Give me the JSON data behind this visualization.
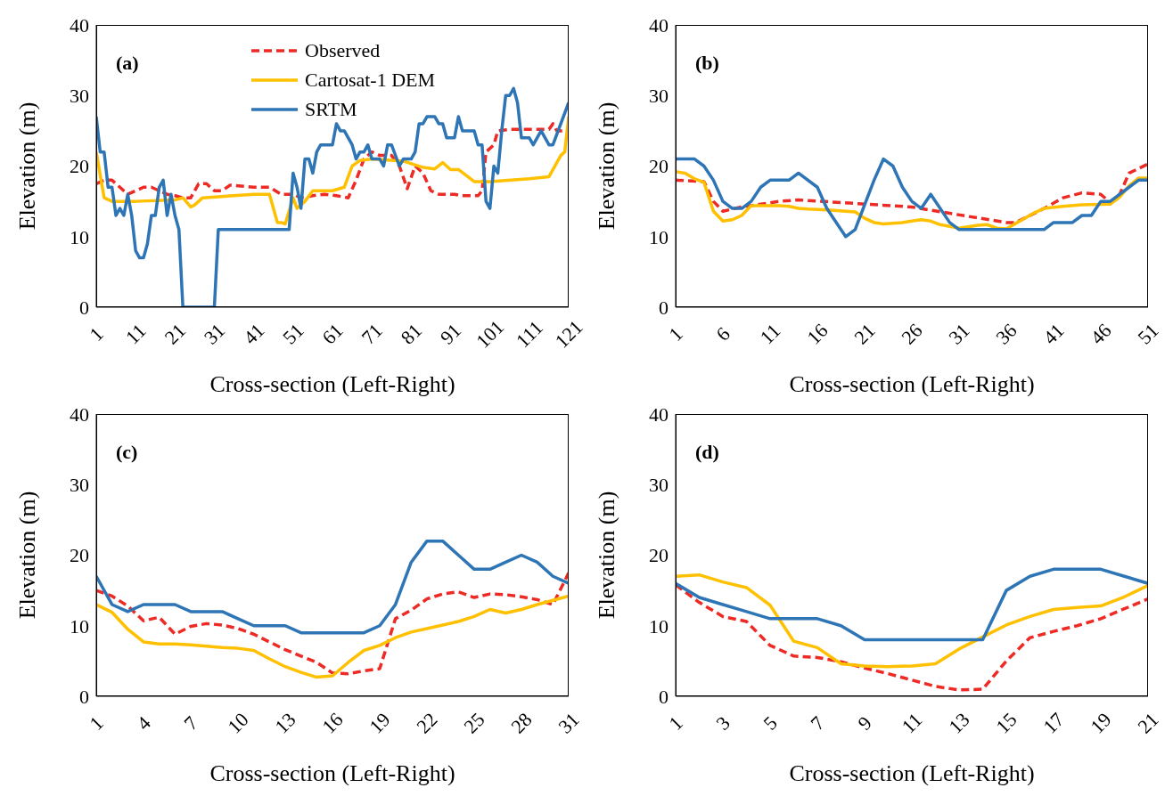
{
  "chart_data": [
    {
      "type": "line",
      "title": "(a)",
      "xlabel": "Cross-section (Left-Right)",
      "ylabel": "Elevation (m)",
      "xlim": [
        1,
        121
      ],
      "xticks": [
        1,
        11,
        21,
        31,
        41,
        51,
        61,
        71,
        81,
        91,
        101,
        111,
        121
      ],
      "ylim": [
        0,
        40
      ],
      "yticks": [
        0,
        10,
        20,
        30,
        40
      ],
      "grid": false,
      "legend": "top",
      "marker": "none",
      "series": [
        {
          "name": "Observed",
          "color": "#ee2a24",
          "line_style": "dashed",
          "x": [
            1,
            3,
            5,
            7,
            9,
            11,
            13,
            15,
            17,
            19,
            21,
            23,
            25,
            27,
            29,
            31,
            33,
            35,
            41,
            45,
            48,
            51,
            53,
            56,
            59,
            62,
            65,
            67,
            69,
            71,
            73,
            76,
            78,
            80,
            82,
            84,
            86,
            88,
            92,
            94,
            98,
            99,
            100,
            102,
            103,
            106,
            116,
            117,
            118,
            121
          ],
          "values": [
            17.5,
            18,
            18,
            17,
            16,
            16.5,
            17,
            17,
            16.5,
            16,
            15.8,
            15.5,
            15.5,
            17.5,
            17.5,
            16.5,
            16.5,
            17.3,
            17,
            17,
            16,
            16,
            15.5,
            15.8,
            16,
            15.8,
            15.5,
            18,
            21,
            22,
            21.5,
            21.5,
            20,
            16.8,
            20,
            19,
            16.5,
            16,
            16,
            15.8,
            15.8,
            16.5,
            22,
            23,
            25,
            25.2,
            25.2,
            26,
            25,
            25
          ]
        },
        {
          "name": "Cartosat-1 DEM",
          "color": "#ffc000",
          "line_style": "solid",
          "x": [
            1,
            3,
            5,
            11,
            21,
            23,
            25,
            26,
            28,
            41,
            45,
            47,
            48,
            49,
            51,
            52,
            54,
            56,
            61,
            64,
            66,
            68,
            71,
            79,
            84,
            87,
            89,
            91,
            93,
            97,
            101,
            111,
            116,
            119,
            120,
            121
          ],
          "values": [
            22,
            15.5,
            15,
            15,
            15.2,
            15.5,
            14.2,
            14.5,
            15.5,
            16,
            16,
            12,
            12,
            11.8,
            15.5,
            14,
            15,
            16.5,
            16.5,
            17,
            20,
            20.8,
            21,
            20.7,
            19.8,
            19.6,
            20.5,
            19.5,
            19.5,
            17.8,
            17.8,
            18.2,
            18.5,
            21.5,
            22,
            27
          ]
        },
        {
          "name": "SRTM",
          "color": "#2e75b6",
          "line_style": "solid",
          "x": [
            1,
            2,
            3,
            4,
            5,
            6,
            7,
            8,
            9,
            10,
            11,
            12,
            13,
            14,
            15,
            16,
            17,
            18,
            19,
            20,
            21,
            22,
            23,
            31,
            32,
            50,
            51,
            52,
            53,
            54,
            55,
            56,
            57,
            58,
            61,
            62,
            63,
            64,
            66,
            67,
            68,
            69,
            70,
            71,
            73,
            74,
            75,
            76,
            78,
            79,
            81,
            82,
            83,
            84,
            85,
            87,
            88,
            89,
            90,
            92,
            93,
            94,
            97,
            98,
            99,
            100,
            101,
            102,
            103,
            104,
            105,
            106,
            107,
            108,
            109,
            111,
            112,
            114,
            116,
            117,
            121
          ],
          "values": [
            27,
            22,
            22,
            17,
            17,
            13,
            14,
            13,
            16,
            13,
            8,
            7,
            7,
            9,
            13,
            13,
            17,
            18,
            13,
            16,
            13,
            11,
            0,
            0,
            11,
            11,
            19,
            17,
            14,
            21,
            21,
            19,
            22,
            23,
            23,
            26,
            25,
            25,
            23,
            21,
            22,
            22,
            23,
            21,
            21,
            20,
            23,
            23,
            20,
            21,
            21,
            22,
            26,
            26,
            27,
            27,
            26,
            26,
            24,
            24,
            27,
            25,
            25,
            23,
            23,
            15,
            14,
            20,
            19,
            25,
            30,
            30,
            31,
            29,
            24,
            24,
            23,
            25,
            23,
            23,
            29
          ]
        }
      ]
    },
    {
      "type": "line",
      "title": "(b)",
      "xlabel": "Cross-section (Left-Right)",
      "ylabel": "Elevation (m)",
      "xlim": [
        1,
        51
      ],
      "xticks": [
        1,
        6,
        11,
        16,
        21,
        26,
        31,
        36,
        41,
        46,
        51
      ],
      "ylim": [
        0,
        40
      ],
      "yticks": [
        0,
        10,
        20,
        30,
        40
      ],
      "grid": false,
      "legend": false,
      "marker": "none",
      "series": [
        {
          "color": "#ee2a24",
          "line_style": "dashed",
          "x": [
            1,
            4,
            5,
            6,
            8,
            12,
            14,
            20,
            26,
            30,
            36,
            37,
            40,
            42,
            44,
            46,
            47,
            48,
            49,
            51
          ],
          "values": [
            18,
            17.8,
            15,
            13.6,
            14.2,
            15,
            15.2,
            14.7,
            14.2,
            13.3,
            12,
            12,
            14,
            15.5,
            16.2,
            16,
            14.8,
            16,
            19,
            20.3
          ]
        },
        {
          "color": "#ffc000",
          "line_style": "solid",
          "x": [
            1,
            2,
            3,
            4,
            5,
            6,
            7,
            8,
            9,
            12,
            13,
            14,
            15,
            17,
            19,
            20,
            21,
            22,
            23,
            25,
            26,
            27,
            28,
            29,
            31,
            33,
            34,
            35,
            36,
            39,
            40,
            42,
            44,
            47,
            48,
            49,
            50,
            51
          ],
          "values": [
            19.2,
            19,
            18.2,
            17.7,
            13.6,
            12.2,
            12.4,
            13,
            14.4,
            14.4,
            14.3,
            14,
            13.9,
            13.8,
            13.6,
            13.5,
            12.6,
            12,
            11.8,
            12,
            12.2,
            12.4,
            12.2,
            11.7,
            11.2,
            11.6,
            11.7,
            11.2,
            11.1,
            13.4,
            14,
            14.3,
            14.5,
            14.6,
            15.6,
            17.2,
            18.3,
            18.3
          ]
        },
        {
          "color": "#2e75b6",
          "line_style": "solid",
          "x": [
            1,
            3,
            4,
            5,
            6,
            7,
            8,
            9,
            10,
            11,
            13,
            14,
            16,
            17,
            19,
            20,
            22,
            23,
            24,
            25,
            26,
            27,
            28,
            30,
            31,
            40,
            41,
            43,
            44,
            45,
            46,
            47,
            49,
            50,
            51
          ],
          "values": [
            21,
            21,
            20,
            18,
            15,
            14,
            14,
            15,
            17,
            18,
            18,
            19,
            17,
            14,
            10,
            11,
            18,
            21,
            20,
            17,
            15,
            14,
            16,
            12,
            11,
            11,
            12,
            12,
            13,
            13,
            15,
            15,
            17,
            18,
            18
          ]
        }
      ]
    },
    {
      "type": "line",
      "title": "(c)",
      "xlabel": "Cross-section (Left-Right)",
      "ylabel": "Elevation (m)",
      "xlim": [
        1,
        31
      ],
      "xticks": [
        1,
        4,
        7,
        10,
        13,
        16,
        19,
        22,
        25,
        28,
        31
      ],
      "ylim": [
        0,
        40
      ],
      "yticks": [
        0,
        10,
        20,
        30,
        40
      ],
      "grid": false,
      "legend": false,
      "marker": "none",
      "x": [
        1,
        2,
        3,
        4,
        5,
        6,
        7,
        8,
        9,
        10,
        11,
        12,
        13,
        14,
        15,
        16,
        17,
        18,
        19,
        20,
        21,
        22,
        23,
        24,
        25,
        26,
        27,
        28,
        29,
        30,
        31
      ],
      "series": [
        {
          "color": "#ee2a24",
          "line_style": "dashed",
          "values": [
            15,
            14.2,
            12.8,
            10.7,
            11.2,
            8.8,
            9.9,
            10.3,
            10.1,
            9.6,
            8.8,
            7.7,
            6.6,
            5.7,
            4.8,
            3.3,
            3.2,
            3.6,
            3.9,
            11,
            12.2,
            13.8,
            14.5,
            14.8,
            14,
            14.5,
            14.4,
            14.1,
            13.7,
            13,
            17.5
          ]
        },
        {
          "color": "#ffc000",
          "line_style": "solid",
          "values": [
            13,
            11.9,
            9.5,
            7.7,
            7.4,
            7.4,
            7.3,
            7.1,
            6.9,
            6.8,
            6.5,
            5.3,
            4.2,
            3.4,
            2.7,
            2.9,
            4.8,
            6.5,
            7.2,
            8.3,
            9.1,
            9.6,
            10.1,
            10.6,
            11.3,
            12.3,
            11.8,
            12.3,
            13,
            13.6,
            14.2
          ]
        },
        {
          "color": "#2e75b6",
          "line_style": "solid",
          "values": [
            17,
            13,
            12,
            13,
            13,
            13,
            12,
            12,
            12,
            11,
            10,
            10,
            10,
            9,
            9,
            9,
            9,
            9,
            10,
            13,
            19,
            22,
            22,
            20,
            18,
            18,
            19,
            20,
            19,
            17,
            16
          ]
        }
      ]
    },
    {
      "type": "line",
      "title": "(d)",
      "xlabel": "Cross-section (Left-Right)",
      "ylabel": "Elevation (m)",
      "xlim": [
        1,
        21
      ],
      "xticks": [
        1,
        3,
        5,
        7,
        9,
        11,
        13,
        15,
        17,
        19,
        21
      ],
      "ylim": [
        0,
        40
      ],
      "yticks": [
        0,
        10,
        20,
        30,
        40
      ],
      "grid": false,
      "legend": false,
      "marker": "none",
      "x": [
        1,
        2,
        3,
        4,
        5,
        6,
        7,
        8,
        9,
        10,
        11,
        12,
        13,
        14,
        15,
        16,
        17,
        18,
        19,
        20,
        21
      ],
      "series": [
        {
          "color": "#ee2a24",
          "line_style": "dashed",
          "values": [
            15.8,
            13.3,
            11.3,
            10.6,
            7.2,
            5.7,
            5.5,
            4.9,
            4,
            3.2,
            2.3,
            1.4,
            0.9,
            1,
            5,
            8.3,
            9.2,
            10,
            11,
            12.4,
            13.8
          ]
        },
        {
          "color": "#ffc000",
          "line_style": "solid",
          "values": [
            17,
            17.2,
            16.2,
            15.4,
            12.9,
            7.8,
            6.9,
            4.6,
            4.3,
            4.2,
            4.3,
            4.6,
            6.7,
            8.4,
            10.1,
            11.3,
            12.3,
            12.6,
            12.8,
            14.1,
            15.7
          ]
        },
        {
          "color": "#2e75b6",
          "line_style": "solid",
          "values": [
            16,
            14,
            13,
            12,
            11,
            11,
            11,
            10,
            8,
            8,
            8,
            8,
            8,
            8,
            15,
            17,
            18,
            18,
            18,
            17,
            16
          ]
        }
      ]
    }
  ]
}
